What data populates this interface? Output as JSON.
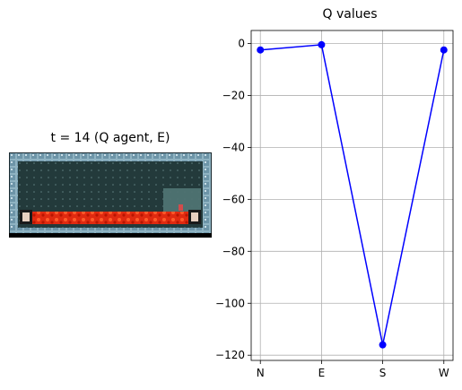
{
  "left_panel": {
    "title": "t = 14 (Q agent, E)"
  },
  "chart_data": {
    "type": "line",
    "title": "Q values",
    "xlabel": "",
    "ylabel": "",
    "categories": [
      "N",
      "E",
      "S",
      "W"
    ],
    "series": [
      {
        "values": [
          -2.5,
          -0.5,
          -116,
          -2.5
        ]
      }
    ],
    "ylim": [
      -122,
      5
    ],
    "yticks": [
      0,
      -20,
      -40,
      -60,
      -80,
      -100,
      -120
    ],
    "grid": true,
    "line_color": "#0000ff",
    "marker_color": "#0000ff"
  }
}
